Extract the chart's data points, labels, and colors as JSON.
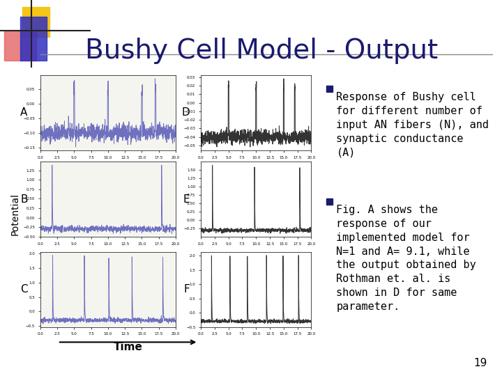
{
  "title": "Bushy Cell Model - Output",
  "title_color": "#1a1a6e",
  "title_fontsize": 28,
  "background_color": "#ffffff",
  "bullet1": "Response of Bushy cell\nfor different number of\ninput AN fibers (N), and\nsynaptic conductance\n(A)",
  "bullet2": "Fig. A shows the\nresponse of our\nimplemented model for\nN=1 and A= 9.1, while\nthe output obtained by\nRothman et. al. is\nshown in D for same\nparameter.",
  "bullet_color": "#1a1a6e",
  "text_color": "#000000",
  "text_fontsize": 11,
  "labels_left": [
    "A",
    "B",
    "C"
  ],
  "labels_right": [
    "D",
    "E",
    "F"
  ],
  "ylabel": "Potential",
  "xlabel": "Time",
  "page_number": "19",
  "accent_colors": {
    "yellow": "#f5c518",
    "red": "#e05050",
    "blue": "#3030c0"
  }
}
